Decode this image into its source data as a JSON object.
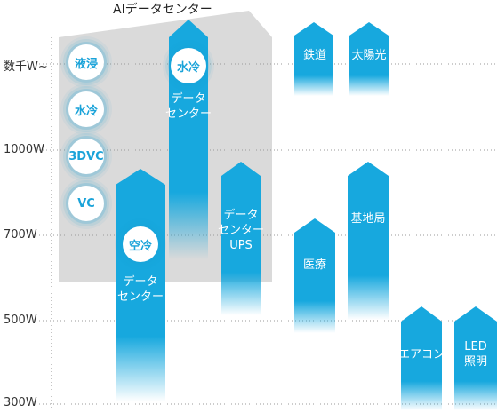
{
  "title": "AIデータセンター",
  "y_axis": [
    "数千W~",
    "1000W",
    "700W",
    "500W",
    "300W"
  ],
  "colors": {
    "arrow": "#17a8de",
    "band": "#dadada",
    "text_circle": "#1aa3d9"
  },
  "circles": {
    "immersion": "液浸",
    "water_ai": "水冷",
    "three_dvc": "3DVC",
    "vc": "VC",
    "air": "空冷",
    "water_dc": "水冷"
  },
  "arrows": {
    "dc_air": "データ\nセンター",
    "dc_water": "データ\nセンター",
    "dc_ups": "データ\nセンター\nUPS",
    "railway": "鉄道",
    "solar": "太陽光",
    "medical": "医療",
    "base_station": "基地局",
    "air_conditioner": "エアコン",
    "led": "LED\n照明"
  }
}
